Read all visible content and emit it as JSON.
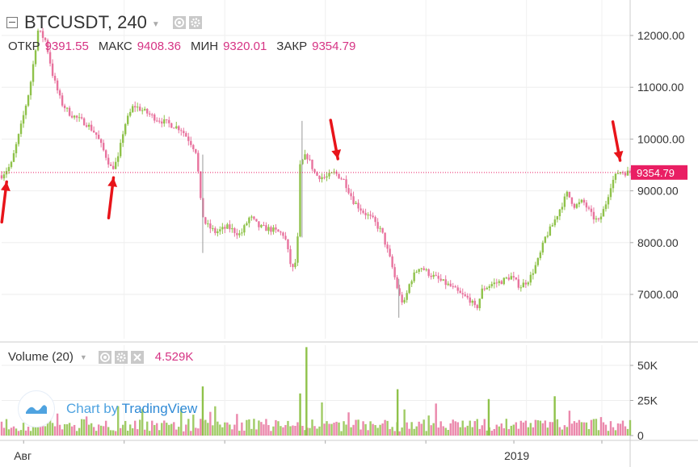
{
  "header": {
    "symbol": "BTCUSDT,",
    "timeframe": "240",
    "ohlc": {
      "open_label": "ОТКР",
      "open": "9391.55",
      "high_label": "МАКС",
      "high": "9408.36",
      "low_label": "МИН",
      "low": "9320.01",
      "close_label": "ЗАКР",
      "close": "9354.79"
    }
  },
  "volume_pane": {
    "label": "Volume (20)",
    "value": "4.529K"
  },
  "watermark": {
    "text_pre": "Chart by ",
    "text_brand": "TradingView"
  },
  "colors": {
    "up": "#8fc24a",
    "down": "#e8739e",
    "last_price": "#e91e63",
    "arrow": "#e8141a",
    "axis_text": "#333333",
    "watermark": "#4fa3e0"
  },
  "chart_data": {
    "type": "candlestick",
    "price_axis": {
      "ticks": [
        "12000.00",
        "11000.00",
        "10000.00",
        "9000.00",
        "8000.00",
        "7000.00"
      ],
      "tick_values": [
        12000,
        11000,
        10000,
        9000,
        8000,
        7000
      ],
      "last_price": "9354.79",
      "last_price_value": 9354.79
    },
    "volume_axis": {
      "ticks": [
        "50K",
        "25K",
        "0"
      ],
      "tick_values": [
        50000,
        25000,
        0
      ]
    },
    "time_axis": {
      "labels": [
        "Авг",
        "2019"
      ],
      "label_fractions": [
        0.035,
        0.815
      ]
    },
    "price_path": [
      [
        0.0,
        9300
      ],
      [
        0.015,
        9500
      ],
      [
        0.03,
        10200
      ],
      [
        0.045,
        11000
      ],
      [
        0.058,
        12100
      ],
      [
        0.07,
        11900
      ],
      [
        0.082,
        11200
      ],
      [
        0.095,
        10700
      ],
      [
        0.108,
        10500
      ],
      [
        0.12,
        10400
      ],
      [
        0.135,
        10300
      ],
      [
        0.15,
        10100
      ],
      [
        0.165,
        9700
      ],
      [
        0.175,
        9420
      ],
      [
        0.185,
        9600
      ],
      [
        0.195,
        10250
      ],
      [
        0.21,
        10650
      ],
      [
        0.225,
        10550
      ],
      [
        0.245,
        10400
      ],
      [
        0.265,
        10300
      ],
      [
        0.285,
        10200
      ],
      [
        0.3,
        9950
      ],
      [
        0.31,
        9750
      ],
      [
        0.318,
        8600
      ],
      [
        0.325,
        8350
      ],
      [
        0.34,
        8200
      ],
      [
        0.36,
        8300
      ],
      [
        0.38,
        8150
      ],
      [
        0.395,
        8500
      ],
      [
        0.41,
        8300
      ],
      [
        0.43,
        8250
      ],
      [
        0.45,
        8150
      ],
      [
        0.462,
        7450
      ],
      [
        0.47,
        7700
      ],
      [
        0.475,
        9500
      ],
      [
        0.485,
        9700
      ],
      [
        0.5,
        9300
      ],
      [
        0.515,
        9250
      ],
      [
        0.53,
        9350
      ],
      [
        0.545,
        9200
      ],
      [
        0.56,
        8800
      ],
      [
        0.575,
        8600
      ],
      [
        0.59,
        8450
      ],
      [
        0.605,
        8200
      ],
      [
        0.62,
        7600
      ],
      [
        0.632,
        7000
      ],
      [
        0.64,
        6800
      ],
      [
        0.65,
        7250
      ],
      [
        0.665,
        7550
      ],
      [
        0.68,
        7400
      ],
      [
        0.7,
        7250
      ],
      [
        0.715,
        7150
      ],
      [
        0.73,
        7000
      ],
      [
        0.745,
        6900
      ],
      [
        0.755,
        6700
      ],
      [
        0.765,
        7100
      ],
      [
        0.78,
        7200
      ],
      [
        0.795,
        7250
      ],
      [
        0.81,
        7350
      ],
      [
        0.825,
        7150
      ],
      [
        0.84,
        7300
      ],
      [
        0.855,
        7700
      ],
      [
        0.865,
        8100
      ],
      [
        0.875,
        8300
      ],
      [
        0.89,
        8700
      ],
      [
        0.9,
        8950
      ],
      [
        0.912,
        8700
      ],
      [
        0.925,
        8800
      ],
      [
        0.94,
        8500
      ],
      [
        0.95,
        8400
      ],
      [
        0.96,
        8700
      ],
      [
        0.97,
        9150
      ],
      [
        0.982,
        9380
      ],
      [
        0.99,
        9354
      ]
    ],
    "volume_spikes": [
      {
        "x_frac": 0.32,
        "value": 35000
      },
      {
        "x_frac": 0.485,
        "value": 63000
      },
      {
        "x_frac": 0.475,
        "value": 30000
      },
      {
        "x_frac": 0.63,
        "value": 33000
      },
      {
        "x_frac": 0.775,
        "value": 26000
      },
      {
        "x_frac": 0.88,
        "value": 28000
      }
    ],
    "annotations": [
      {
        "type": "arrow",
        "label": "arrow-1",
        "x_frac": 0.008,
        "price": 9300
      },
      {
        "type": "arrow",
        "label": "arrow-2",
        "x_frac": 0.178,
        "price": 9380
      },
      {
        "type": "arrow",
        "label": "arrow-3",
        "x_frac": 0.535,
        "price": 9430
      },
      {
        "type": "arrow",
        "label": "arrow-4",
        "x_frac": 0.984,
        "price": 9400
      }
    ]
  }
}
